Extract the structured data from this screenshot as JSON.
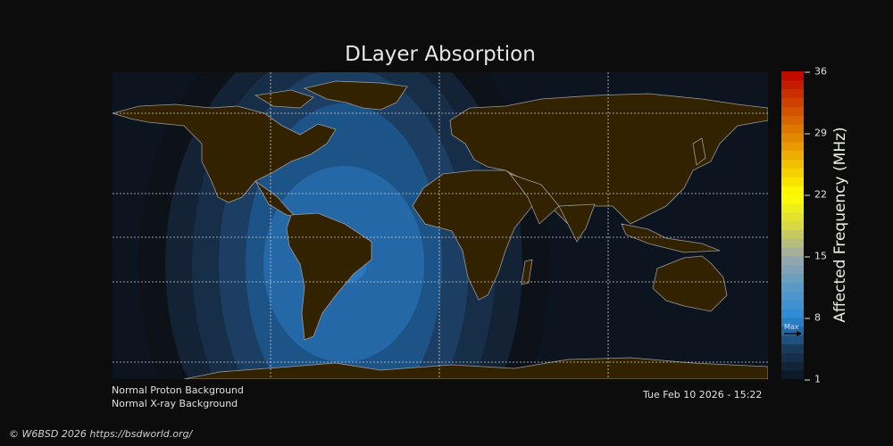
{
  "title": "DLayer Absorption",
  "colorbar": {
    "label": "Affected Frequency (MHz)",
    "min": 1,
    "max": 36,
    "ticks": [
      "36",
      "29",
      "22",
      "15",
      "8",
      "1"
    ],
    "tick_values": [
      36,
      29,
      22,
      15,
      8,
      1
    ],
    "max_marker_label": "Max",
    "max_marker_value": 6.2,
    "stops": [
      "#0c1420",
      "#1a3a5c",
      "#2a8ad8",
      "#5a9ac8",
      "#9aa8a8",
      "#d8d840",
      "#ffff00",
      "#f0c000",
      "#e08000",
      "#d04000",
      "#c00000"
    ]
  },
  "map": {
    "land_color": "#332200",
    "coast_color": "#9a9a9a",
    "ocean_color": "#0c1420",
    "absorption_levels": [
      1,
      2,
      3,
      4,
      5,
      6
    ],
    "level_colors": [
      "#0d1118",
      "#132234",
      "#172e48",
      "#1b3e62",
      "#1d5488",
      "#2468a8"
    ]
  },
  "footer": {
    "proton": "Normal Proton Background",
    "xray": "Normal X-ray Background",
    "timestamp": "Tue Feb 10 2026 - 15:22",
    "copyright": "© W6BSD 2026 https://bsdworld.org/"
  }
}
